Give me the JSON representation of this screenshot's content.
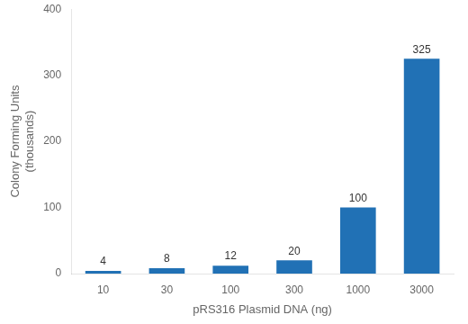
{
  "chart_data": {
    "type": "bar",
    "categories": [
      "10",
      "30",
      "100",
      "300",
      "1000",
      "3000"
    ],
    "values": [
      4,
      8,
      12,
      20,
      100,
      325
    ],
    "color": "#2171b5",
    "xlabel": "pRS316 Plasmid DNA (ng)",
    "ylabel": "Colony Forming Units\n(thousands)",
    "ylim": [
      0,
      400
    ],
    "yticks": [
      0,
      100,
      200,
      300,
      400
    ],
    "grid": false,
    "data_labels": true
  }
}
